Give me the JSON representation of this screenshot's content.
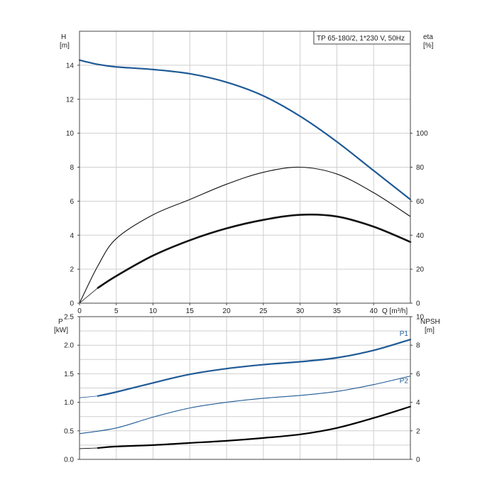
{
  "title": "TP 65-180/2, 1*230 V, 50Hz",
  "colors": {
    "head": "#1f5a96",
    "power": "#1f5a96",
    "eff": "#111111",
    "npsh": "#000000",
    "grid": "#cfcfcf"
  },
  "top": {
    "ylabel_left": [
      "H",
      "[m]"
    ],
    "ylabel_right": [
      "eta",
      "[%]"
    ],
    "xlabel": "Q [m³/h]"
  },
  "bottom": {
    "ylabel_left": [
      "P",
      "[kW]"
    ],
    "ylabel_right": [
      "NPSH",
      "[m]"
    ]
  },
  "chart_data": [
    {
      "type": "line",
      "title": "TP 65-180/2, 1*230 V, 50Hz",
      "xlabel": "Q [m³/h]",
      "ylabel": "H [m]",
      "ylabel_right": "eta [%]",
      "xlim": [
        0,
        45
      ],
      "ylim": [
        0,
        16
      ],
      "ylim_right": [
        0,
        160
      ],
      "xticks": [
        "0",
        "5",
        "10",
        "15",
        "20",
        "25",
        "30",
        "35",
        "40"
      ],
      "yticks": [
        "0",
        "2",
        "4",
        "6",
        "8",
        "10",
        "12",
        "14"
      ],
      "yticks_right": [
        "0",
        "20",
        "40",
        "60",
        "80",
        "100"
      ],
      "grid": true,
      "series": [
        {
          "key": "H",
          "axis": "left",
          "x": [
            0,
            2.5,
            5,
            10,
            15,
            20,
            25,
            30,
            35,
            40,
            45
          ],
          "y": [
            14.3,
            14.05,
            13.9,
            13.75,
            13.5,
            13.0,
            12.2,
            11.0,
            9.5,
            7.8,
            6.1
          ],
          "pre_x": [
            0,
            2.5
          ],
          "pre_y": [
            14.3,
            14.05
          ]
        },
        {
          "key": "eta",
          "axis": "right",
          "x": [
            0,
            2.5,
            5,
            10,
            15,
            20,
            25,
            30,
            35,
            40,
            45
          ],
          "y": [
            0,
            22,
            38,
            52,
            61,
            70,
            77,
            80,
            76,
            65,
            51
          ]
        },
        {
          "key": "eta_overall",
          "axis": "right",
          "x": [
            2.5,
            5,
            10,
            15,
            20,
            25,
            30,
            35,
            40,
            45
          ],
          "y": [
            9,
            16,
            28,
            37,
            44,
            49,
            52,
            51,
            45,
            36
          ],
          "pre_x": [
            0,
            2.5
          ],
          "pre_y": [
            0,
            9
          ]
        }
      ]
    },
    {
      "type": "line",
      "xlabel": "",
      "ylabel": "P [kW]",
      "ylabel_right": "NPSH [m]",
      "xlim": [
        0,
        45
      ],
      "ylim": [
        0,
        2.5
      ],
      "ylim_right": [
        0,
        10
      ],
      "yticks": [
        "0.0",
        "0.5",
        "1.0",
        "1.5",
        "2.0",
        "2.5"
      ],
      "yticks_right": [
        "0",
        "2",
        "4",
        "6",
        "8",
        "10"
      ],
      "grid": true,
      "series": [
        {
          "name": "P1",
          "axis": "left",
          "x": [
            2.5,
            5,
            10,
            15,
            20,
            25,
            30,
            35,
            40,
            45
          ],
          "y": [
            1.11,
            1.18,
            1.34,
            1.49,
            1.59,
            1.66,
            1.71,
            1.78,
            1.91,
            2.1
          ],
          "pre_x": [
            0,
            2.5
          ],
          "pre_y": [
            1.08,
            1.11
          ]
        },
        {
          "name": "P2",
          "axis": "left",
          "x": [
            0,
            5,
            10,
            15,
            20,
            25,
            30,
            35,
            40,
            45
          ],
          "y": [
            0.45,
            0.55,
            0.74,
            0.9,
            1.0,
            1.07,
            1.12,
            1.19,
            1.31,
            1.46
          ]
        },
        {
          "key": "NPSH",
          "axis": "right",
          "x": [
            2.5,
            5,
            10,
            15,
            20,
            25,
            30,
            35,
            40,
            45
          ],
          "y": [
            0.8,
            0.9,
            1.0,
            1.15,
            1.3,
            1.5,
            1.75,
            2.2,
            2.9,
            3.7
          ],
          "pre_x": [
            0,
            2.5
          ],
          "pre_y": [
            0.75,
            0.8
          ]
        }
      ]
    }
  ]
}
